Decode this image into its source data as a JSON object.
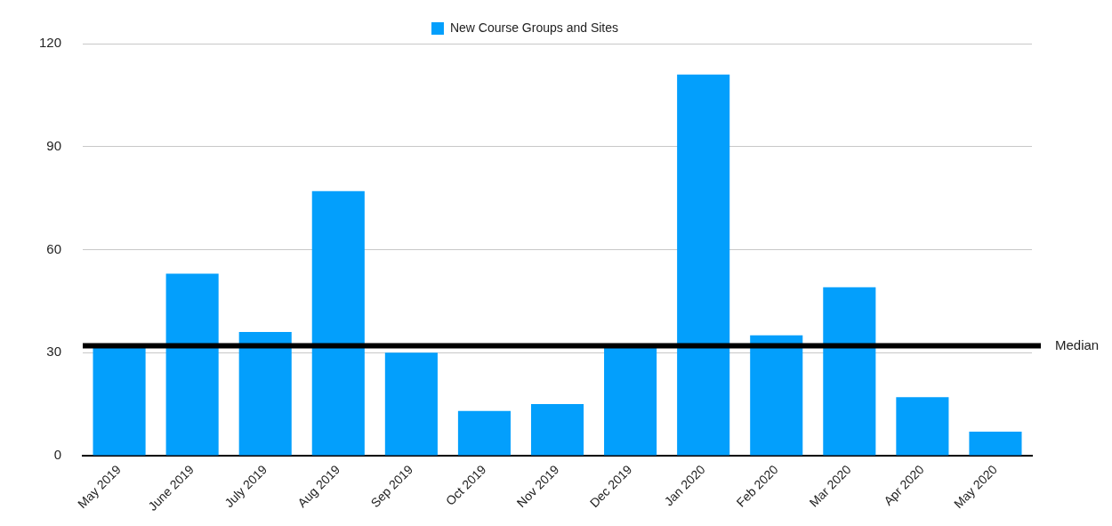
{
  "chart_data": {
    "type": "bar",
    "categories": [
      "May 2019",
      "June 2019",
      "July 2019",
      "Aug 2019",
      "Sep 2019",
      "Oct 2019",
      "Nov 2019",
      "Dec 2019",
      "Jan 2020",
      "Feb 2020",
      "Mar 2020",
      "Apr 2020",
      "May 2020"
    ],
    "series": [
      {
        "name": "New Course Groups and Sites",
        "color": "#039ffc",
        "values": [
          32,
          53,
          36,
          77,
          30,
          13,
          15,
          32,
          111,
          35,
          49,
          17,
          7
        ]
      }
    ],
    "ylim": [
      0,
      120
    ],
    "yticks": [
      0,
      30,
      60,
      90,
      120
    ],
    "grid": "y",
    "legend": "top",
    "ref_lines": [
      {
        "axis": "y",
        "value": 32,
        "label": "Median",
        "color": "#000000"
      }
    ]
  }
}
